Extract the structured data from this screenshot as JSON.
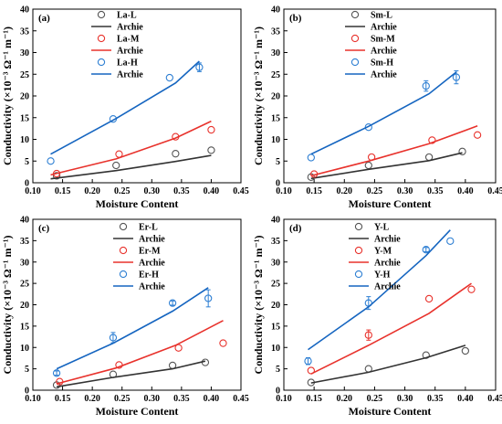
{
  "chart_data": [
    {
      "type": "scatter",
      "panel_label": "(a)",
      "xlabel": "Moisture Content",
      "ylabel": "Conductivity (×10⁻³ Ω⁻¹ m⁻¹)",
      "xlim": [
        0.1,
        0.45
      ],
      "ylim": [
        0,
        40
      ],
      "xticks": [
        "0.10",
        "0.15",
        "0.20",
        "0.25",
        "0.30",
        "0.35",
        "0.40",
        "0.45"
      ],
      "yticks": [
        "0",
        "5",
        "10",
        "15",
        "20",
        "25",
        "30",
        "35",
        "40"
      ],
      "legend_position": "top-left",
      "series": [
        {
          "name": "La-L",
          "kind": "points",
          "color": "#555555",
          "x": [
            0.14,
            0.24,
            0.34,
            0.4
          ],
          "y": [
            1.6,
            4.0,
            6.7,
            7.5
          ],
          "err": [
            0,
            0,
            0,
            0
          ]
        },
        {
          "name": "Archie",
          "kind": "line",
          "color": "#333333",
          "x": [
            0.13,
            0.24,
            0.34,
            0.4
          ],
          "y": [
            0.9,
            2.8,
            4.9,
            6.3
          ]
        },
        {
          "name": "La-M",
          "kind": "points",
          "color": "#e8322c",
          "x": [
            0.14,
            0.245,
            0.34,
            0.4
          ],
          "y": [
            2.1,
            6.6,
            10.6,
            12.2
          ],
          "err": [
            0,
            0,
            0,
            0
          ]
        },
        {
          "name": "Archie",
          "kind": "line",
          "color": "#e8322c",
          "x": [
            0.13,
            0.24,
            0.34,
            0.4
          ],
          "y": [
            1.8,
            5.5,
            10.3,
            14.2
          ]
        },
        {
          "name": "La-H",
          "kind": "points",
          "color": "#2e7fd3",
          "x": [
            0.13,
            0.235,
            0.33,
            0.38
          ],
          "y": [
            5.0,
            14.7,
            24.2,
            26.6
          ],
          "err": [
            0,
            0,
            0,
            1.0
          ]
        },
        {
          "name": "Archie",
          "kind": "line",
          "color": "#1565c0",
          "x": [
            0.13,
            0.24,
            0.34,
            0.38
          ],
          "y": [
            6.6,
            14.8,
            23.0,
            28.0
          ]
        }
      ]
    },
    {
      "type": "scatter",
      "panel_label": "(b)",
      "xlabel": "Moisture Content",
      "ylabel": "Conductivity (×10⁻³ Ω⁻¹ m⁻¹)",
      "xlim": [
        0.1,
        0.45
      ],
      "ylim": [
        0,
        40
      ],
      "xticks": [
        "0.10",
        "0.15",
        "0.20",
        "0.25",
        "0.30",
        "0.35",
        "0.40",
        "0.45"
      ],
      "yticks": [
        "0",
        "5",
        "10",
        "15",
        "20",
        "25",
        "30",
        "35",
        "40"
      ],
      "legend_position": "top-center",
      "series": [
        {
          "name": "Sm-L",
          "kind": "points",
          "color": "#555555",
          "x": [
            0.145,
            0.24,
            0.34,
            0.395
          ],
          "y": [
            1.3,
            4.0,
            5.9,
            7.2
          ],
          "err": [
            0,
            0,
            0,
            0
          ]
        },
        {
          "name": "Archie",
          "kind": "line",
          "color": "#333333",
          "x": [
            0.145,
            0.24,
            0.34,
            0.395
          ],
          "y": [
            1.0,
            3.1,
            5.1,
            6.9
          ]
        },
        {
          "name": "Sm-M",
          "kind": "points",
          "color": "#e8322c",
          "x": [
            0.15,
            0.245,
            0.345,
            0.42
          ],
          "y": [
            2.0,
            5.9,
            9.8,
            11.0
          ],
          "err": [
            0,
            0,
            0,
            0
          ]
        },
        {
          "name": "Archie",
          "kind": "line",
          "color": "#e8322c",
          "x": [
            0.145,
            0.24,
            0.34,
            0.42
          ],
          "y": [
            1.6,
            5.0,
            9.0,
            13.1
          ]
        },
        {
          "name": "Sm-H",
          "kind": "points",
          "color": "#2e7fd3",
          "x": [
            0.145,
            0.24,
            0.335,
            0.385
          ],
          "y": [
            5.8,
            12.8,
            22.3,
            24.3
          ],
          "err": [
            0,
            0,
            1.2,
            1.5
          ]
        },
        {
          "name": "Archie",
          "kind": "line",
          "color": "#1565c0",
          "x": [
            0.145,
            0.24,
            0.34,
            0.385
          ],
          "y": [
            6.6,
            13.0,
            20.5,
            25.5
          ]
        }
      ]
    },
    {
      "type": "scatter",
      "panel_label": "(c)",
      "xlabel": "Moisture Content",
      "ylabel": "Conductivity (×10⁻³ Ω⁻¹ m⁻¹)",
      "xlim": [
        0.1,
        0.45
      ],
      "ylim": [
        0,
        40
      ],
      "xticks": [
        "0.10",
        "0.15",
        "0.20",
        "0.25",
        "0.30",
        "0.35",
        "0.40",
        "0.45"
      ],
      "yticks": [
        "0",
        "5",
        "10",
        "15",
        "20",
        "25",
        "30",
        "35",
        "40"
      ],
      "legend_position": "top-center",
      "series": [
        {
          "name": "Er-L",
          "kind": "points",
          "color": "#555555",
          "x": [
            0.14,
            0.235,
            0.335,
            0.39
          ],
          "y": [
            1.2,
            3.7,
            5.8,
            6.5
          ],
          "err": [
            0,
            0,
            0,
            0
          ]
        },
        {
          "name": "Archie",
          "kind": "line",
          "color": "#333333",
          "x": [
            0.14,
            0.235,
            0.335,
            0.39
          ],
          "y": [
            0.8,
            3.0,
            5.0,
            6.8
          ]
        },
        {
          "name": "Er-M",
          "kind": "points",
          "color": "#e8322c",
          "x": [
            0.145,
            0.245,
            0.345,
            0.42
          ],
          "y": [
            2.0,
            5.9,
            9.9,
            11.0
          ],
          "err": [
            0,
            0,
            0,
            0
          ]
        },
        {
          "name": "Archie",
          "kind": "line",
          "color": "#e8322c",
          "x": [
            0.14,
            0.24,
            0.34,
            0.42
          ],
          "y": [
            1.5,
            5.2,
            10.5,
            16.3
          ]
        },
        {
          "name": "Er-H",
          "kind": "points",
          "color": "#2e7fd3",
          "x": [
            0.14,
            0.235,
            0.335,
            0.395
          ],
          "y": [
            4.0,
            12.3,
            20.4,
            21.5
          ],
          "err": [
            0.5,
            1.2,
            0.5,
            2.0
          ]
        },
        {
          "name": "Archie",
          "kind": "line",
          "color": "#1565c0",
          "x": [
            0.14,
            0.235,
            0.335,
            0.395
          ],
          "y": [
            5.0,
            11.0,
            18.5,
            24.0
          ]
        }
      ]
    },
    {
      "type": "scatter",
      "panel_label": "(d)",
      "xlabel": "Moisture Content",
      "ylabel": "Conductivity (×10⁻³ Ω⁻¹ m⁻¹)",
      "xlim": [
        0.1,
        0.45
      ],
      "ylim": [
        0,
        40
      ],
      "xticks": [
        "0.10",
        "0.15",
        "0.20",
        "0.25",
        "0.30",
        "0.35",
        "0.40",
        "0.45"
      ],
      "yticks": [
        "0",
        "5",
        "10",
        "15",
        "20",
        "25",
        "30",
        "35",
        "40"
      ],
      "legend_position": "top-left",
      "series": [
        {
          "name": "Y-L",
          "kind": "points",
          "color": "#555555",
          "x": [
            0.145,
            0.24,
            0.335,
            0.4
          ],
          "y": [
            1.8,
            5.0,
            8.2,
            9.2
          ],
          "err": [
            0,
            0,
            0,
            0
          ]
        },
        {
          "name": "Archie",
          "kind": "line",
          "color": "#333333",
          "x": [
            0.145,
            0.24,
            0.335,
            0.4
          ],
          "y": [
            1.7,
            4.2,
            7.6,
            10.5
          ]
        },
        {
          "name": "Y-M",
          "kind": "points",
          "color": "#e8322c",
          "x": [
            0.145,
            0.24,
            0.34,
            0.41
          ],
          "y": [
            4.6,
            12.9,
            21.4,
            23.6
          ],
          "err": [
            0,
            1.2,
            0,
            0
          ]
        },
        {
          "name": "Archie",
          "kind": "line",
          "color": "#e8322c",
          "x": [
            0.145,
            0.24,
            0.34,
            0.41
          ],
          "y": [
            3.8,
            10.5,
            18.0,
            25.0
          ]
        },
        {
          "name": "Y-H",
          "kind": "points",
          "color": "#2e7fd3",
          "x": [
            0.14,
            0.24,
            0.335,
            0.375
          ],
          "y": [
            6.8,
            20.4,
            32.9,
            34.9
          ],
          "err": [
            0.8,
            1.5,
            0.5,
            0
          ]
        },
        {
          "name": "Archie",
          "kind": "line",
          "color": "#1565c0",
          "x": [
            0.14,
            0.24,
            0.335,
            0.375
          ],
          "y": [
            9.5,
            19.5,
            31.5,
            37.5
          ]
        }
      ]
    }
  ]
}
